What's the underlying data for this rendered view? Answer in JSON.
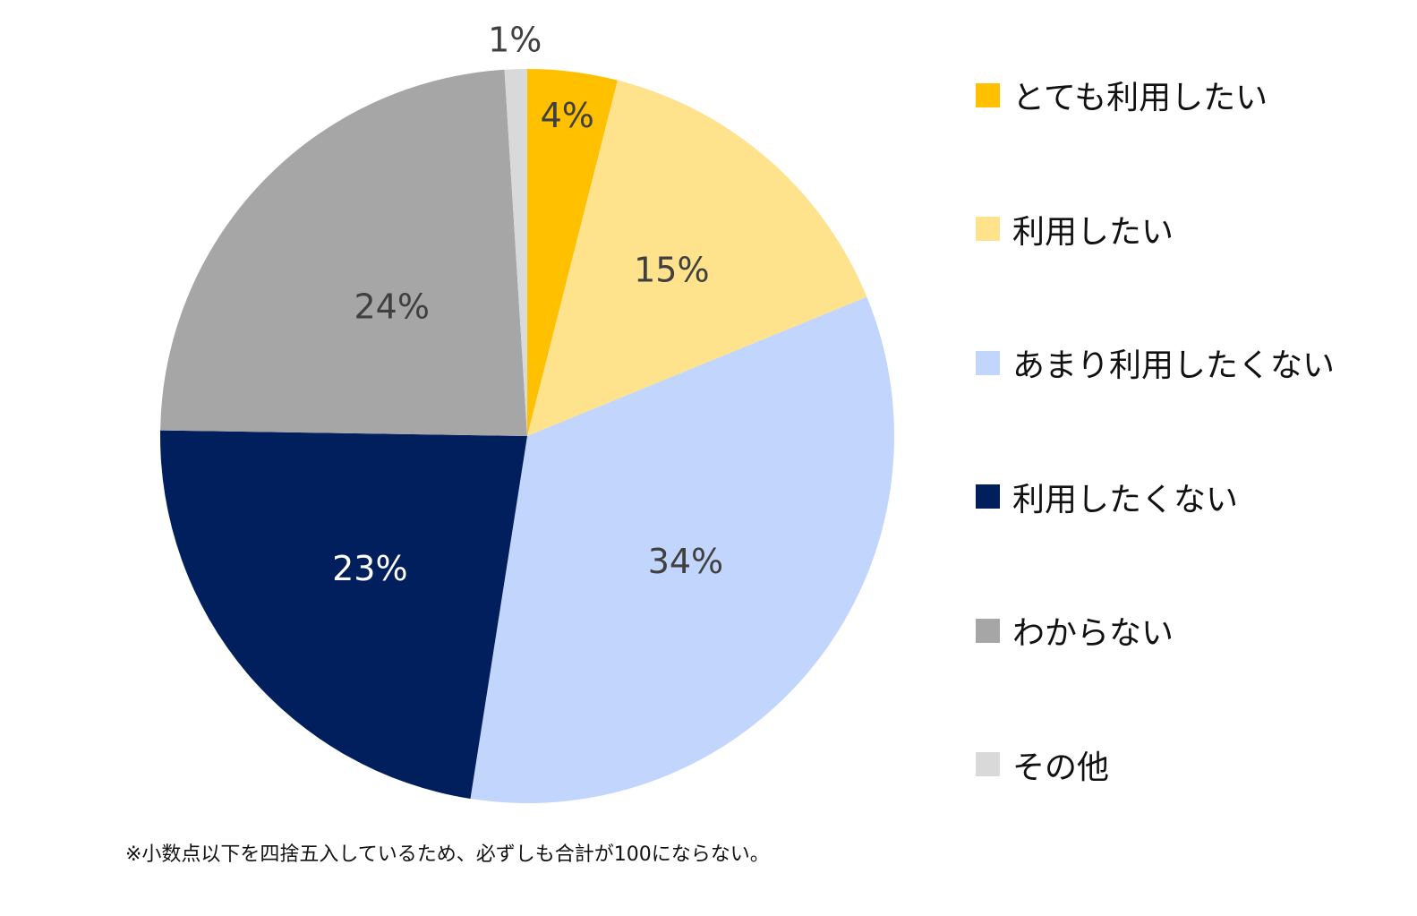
{
  "chart_data": {
    "type": "pie",
    "categories": [
      "とても利用したい",
      "利用したい",
      "あまり利用したくない",
      "利用したくない",
      "わからない",
      "その他"
    ],
    "values": [
      4,
      15,
      34,
      23,
      24,
      1
    ],
    "labels": [
      "4%",
      "15%",
      "34%",
      "23%",
      "24%",
      "1%"
    ],
    "colors": [
      "#FFC000",
      "#FFE28C",
      "#C2D5FC",
      "#001F5C",
      "#A6A6A6",
      "#D9D9D9"
    ],
    "label_colors": [
      "#404040",
      "#404040",
      "#404040",
      "#FFFFFF",
      "#404040",
      "#404040"
    ],
    "legend_position": "right",
    "start": "top",
    "direction": "clockwise"
  },
  "footnote": "※小数点以下を四捨五入しているため、必ずしも合計が100にならない。"
}
